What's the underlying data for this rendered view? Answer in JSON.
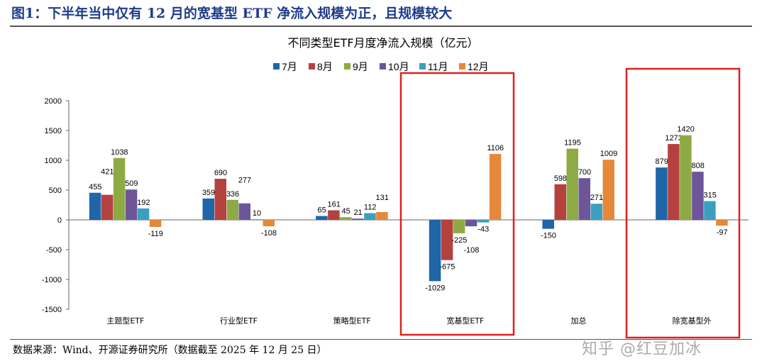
{
  "figure_title": "图1：下半年当中仅有 12 月的宽基型 ETF 净流入规模为正，且规模较大",
  "source": "数据来源：Wind、开源证券研究所（数据截至 2025 年 12 月 25 日）",
  "watermark": "知乎 @红豆加冰",
  "chart_data": {
    "type": "bar",
    "title": "不同类型ETF月度净流入规模（亿元）",
    "categories": [
      "主题型ETF",
      "行业型ETF",
      "策略型ETF",
      "宽基型ETF",
      "加总",
      "除宽基型外"
    ],
    "series": [
      {
        "name": "7月",
        "color": "#1f65a8",
        "values": [
          455,
          359,
          65,
          -1029,
          -150,
          879
        ]
      },
      {
        "name": "8月",
        "color": "#b5413f",
        "values": [
          421,
          690,
          161,
          -675,
          598,
          1273
        ]
      },
      {
        "name": "9月",
        "color": "#8eaa45",
        "values": [
          1038,
          336,
          45,
          -225,
          1195,
          1420
        ]
      },
      {
        "name": "10月",
        "color": "#6e559a",
        "values": [
          509,
          277,
          21,
          -108,
          700,
          808
        ]
      },
      {
        "name": "11月",
        "color": "#3aa0be",
        "values": [
          192,
          10,
          112,
          -43,
          271,
          315
        ]
      },
      {
        "name": "12月",
        "color": "#e5883a",
        "values": [
          -119,
          -108,
          131,
          1106,
          1009,
          -97
        ]
      }
    ],
    "ylim": [
      -1500,
      2000
    ],
    "yticks": [
      2000,
      1500,
      1000,
      500,
      0,
      -500,
      -1000,
      -1500
    ],
    "legend": "top",
    "grid": false,
    "highlight_boxes": [
      "宽基型ETF",
      "除宽基型外"
    ],
    "highlight_color": "#e02020"
  }
}
